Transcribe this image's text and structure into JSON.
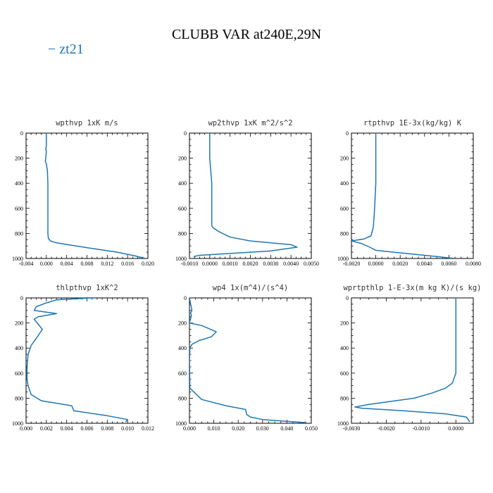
{
  "figure": {
    "title": "CLUBB VAR at240E,29N",
    "legend": [
      {
        "label": "zt21",
        "color": "#1f77b4"
      }
    ]
  },
  "chart_data": [
    {
      "type": "line",
      "title": "wpthvp  1xK m/s",
      "xlim": [
        -0.004,
        0.02
      ],
      "ylim": [
        1000,
        0
      ],
      "xticks": [
        -0.004,
        0.0,
        0.004,
        0.008,
        0.012,
        0.016,
        0.02
      ],
      "xtick_labels": [
        "-0.004",
        "0.000",
        "0.004",
        "0.008",
        "0.012",
        "0.016",
        "0.020"
      ],
      "yticks": [
        0,
        200,
        400,
        600,
        800,
        1000
      ],
      "ytick_labels": [
        "0",
        "200",
        "400",
        "600",
        "800",
        "1000"
      ],
      "series": [
        {
          "name": "zt21",
          "color": "#1f77b4",
          "x": [
            0.0,
            0.0,
            -0.0001,
            0.0,
            -0.0002,
            0.0,
            0.0002,
            0.0003,
            0.0003,
            0.0003,
            0.0004,
            0.0008,
            0.002,
            0.005,
            0.009,
            0.014,
            0.0175,
            0.0195
          ],
          "y": [
            0,
            100,
            125,
            150,
            225,
            245,
            300,
            400,
            600,
            800,
            840,
            860,
            875,
            895,
            920,
            950,
            980,
            1000
          ]
        }
      ]
    },
    {
      "type": "line",
      "title": "wp2thvp  1xK m^2/s^2",
      "xlim": [
        -0.001,
        0.005
      ],
      "ylim": [
        1000,
        0
      ],
      "xticks": [
        -0.001,
        0.0,
        0.001,
        0.002,
        0.003,
        0.004,
        0.005
      ],
      "xtick_labels": [
        "-0.0010",
        "0.0000",
        "0.0010",
        "0.0020",
        "0.0030",
        "0.0040",
        "0.0050"
      ],
      "yticks": [
        0,
        200,
        400,
        600,
        800,
        1000
      ],
      "ytick_labels": [
        "0",
        "200",
        "400",
        "600",
        "800",
        "1000"
      ],
      "series": [
        {
          "name": "zt21",
          "color": "#1f77b4",
          "x": [
            0.0,
            0.0,
            0.0001,
            0.0001,
            0.0001,
            0.0002,
            0.0005,
            0.001,
            0.002,
            0.004,
            0.0043,
            0.003,
            0.001,
            -0.0005,
            -0.0008
          ],
          "y": [
            0,
            200,
            400,
            600,
            740,
            760,
            790,
            830,
            860,
            890,
            910,
            940,
            960,
            975,
            985
          ]
        }
      ]
    },
    {
      "type": "line",
      "title": "rtpthvp  1E-3x(kg/kg) K",
      "xlim": [
        -0.002,
        0.008
      ],
      "ylim": [
        1000,
        0
      ],
      "xticks": [
        -0.002,
        0.0,
        0.002,
        0.004,
        0.006,
        0.008
      ],
      "xtick_labels": [
        "-0.0020",
        "0.0000",
        "0.0020",
        "0.0040",
        "0.0060",
        "0.0080"
      ],
      "yticks": [
        0,
        200,
        400,
        600,
        800,
        1000
      ],
      "ytick_labels": [
        "0",
        "200",
        "400",
        "600",
        "800",
        "1000"
      ],
      "series": [
        {
          "name": "zt21",
          "color": "#1f77b4",
          "x": [
            0.0,
            0.0,
            -0.0001,
            -0.0002,
            -0.0004,
            -0.001,
            -0.002,
            -0.0012,
            -0.0005,
            0.0,
            0.001,
            0.003,
            0.005,
            0.0065
          ],
          "y": [
            0,
            400,
            600,
            750,
            820,
            845,
            860,
            880,
            910,
            935,
            945,
            965,
            985,
            1000
          ]
        }
      ]
    },
    {
      "type": "line",
      "title": "thlpthvp  1xK^2",
      "xlim": [
        0.0,
        0.012
      ],
      "ylim": [
        1000,
        0
      ],
      "xticks": [
        0.0,
        0.002,
        0.004,
        0.006,
        0.008,
        0.01,
        0.012
      ],
      "xtick_labels": [
        "0.000",
        "0.002",
        "0.004",
        "0.006",
        "0.008",
        "0.010",
        "0.012"
      ],
      "yticks": [
        0,
        200,
        400,
        600,
        800,
        1000
      ],
      "ytick_labels": [
        "0",
        "200",
        "400",
        "600",
        "800",
        "1000"
      ],
      "series": [
        {
          "name": "zt21",
          "color": "#1f77b4",
          "x": [
            0.0065,
            0.003,
            0.002,
            0.001,
            0.0008,
            0.003,
            0.0012,
            0.0008,
            0.0012,
            0.0016,
            0.0012,
            0.0005,
            0.0002,
            0.0001,
            0.0001,
            0.0002,
            0.0005,
            0.0015,
            0.0045,
            0.0047,
            0.008,
            0.01,
            0.0098
          ],
          "y": [
            0,
            15,
            40,
            70,
            100,
            125,
            150,
            170,
            210,
            250,
            300,
            380,
            450,
            550,
            650,
            700,
            770,
            820,
            860,
            900,
            940,
            970,
            990
          ]
        }
      ]
    },
    {
      "type": "line",
      "title": "wp4  1x(m^4)/(s^4)",
      "xlim": [
        0.0,
        0.05
      ],
      "ylim": [
        1000,
        0
      ],
      "xticks": [
        0.0,
        0.01,
        0.02,
        0.03,
        0.04,
        0.05
      ],
      "xtick_labels": [
        "0.000",
        "0.010",
        "0.020",
        "0.030",
        "0.040",
        "0.050"
      ],
      "yticks": [
        0,
        200,
        400,
        600,
        800,
        1000
      ],
      "ytick_labels": [
        "0",
        "200",
        "400",
        "600",
        "800",
        "1000"
      ],
      "series": [
        {
          "name": "zt21",
          "color": "#1f77b4",
          "x": [
            0.0,
            0.001,
            0.0005,
            0.0008,
            0.0,
            0.005,
            0.011,
            0.009,
            0.004,
            0.001,
            0.0002,
            0.0,
            0.0002,
            0.005,
            0.015,
            0.023,
            0.0235,
            0.025,
            0.03,
            0.04,
            0.048
          ],
          "y": [
            0,
            100,
            120,
            140,
            200,
            220,
            270,
            310,
            340,
            370,
            400,
            500,
            720,
            810,
            860,
            890,
            930,
            950,
            970,
            985,
            995
          ]
        }
      ]
    },
    {
      "type": "line",
      "title": "wprtpthlp  1-E-3x(m kg K)/(s kg)",
      "xlim": [
        -0.003,
        0.0005
      ],
      "ylim": [
        1000,
        0
      ],
      "xticks": [
        -0.003,
        -0.002,
        -0.001,
        0.0
      ],
      "xtick_labels": [
        "-0.0030",
        "-0.0020",
        "-0.0010",
        "0.0000"
      ],
      "yticks": [
        0,
        200,
        400,
        600,
        800,
        1000
      ],
      "ytick_labels": [
        "0",
        "200",
        "400",
        "600",
        "800",
        "1000"
      ],
      "series": [
        {
          "name": "zt21",
          "color": "#1f77b4",
          "x": [
            0.0,
            0.0,
            0.0,
            -0.0001,
            -0.0003,
            -0.0007,
            -0.0012,
            -0.0025,
            -0.0029,
            -0.0027,
            -0.0015,
            -0.0003,
            0.0003,
            0.0004
          ],
          "y": [
            0,
            400,
            600,
            680,
            720,
            760,
            800,
            850,
            870,
            880,
            900,
            925,
            950,
            990
          ]
        }
      ]
    }
  ]
}
